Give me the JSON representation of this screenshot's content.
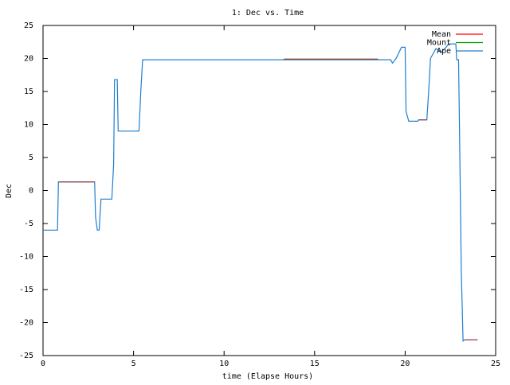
{
  "chart_data": {
    "type": "line",
    "title": "1: Dec vs. Time",
    "x_label": "time (Elapse Hours)",
    "y_label": "Dec",
    "xlim": [
      0,
      25
    ],
    "xticks": [
      0,
      5,
      10,
      15,
      20,
      25
    ],
    "ylim": [
      -25,
      25
    ],
    "yticks": [
      -25,
      -20,
      -15,
      -10,
      -5,
      0,
      5,
      10,
      15,
      20,
      25
    ],
    "legend": "top-right",
    "series": [
      {
        "name": "Mean",
        "color": "#ff0000",
        "x": [
          0.85,
          2.85,
          null,
          13.3,
          18.5,
          null,
          20.75,
          21.2,
          null,
          23.3,
          24.0
        ],
        "values": [
          1.3,
          1.3,
          null,
          19.9,
          19.9,
          null,
          10.7,
          10.7,
          null,
          -22.6,
          -22.6
        ]
      },
      {
        "name": "Mount",
        "color": "#00a000",
        "x": [
          0.85,
          2.85,
          null,
          13.3,
          18.5,
          null,
          20.75,
          21.2,
          null,
          23.3,
          24.0
        ],
        "values": [
          1.3,
          1.3,
          null,
          19.9,
          19.9,
          null,
          10.7,
          10.7,
          null,
          -22.6,
          -22.6
        ]
      },
      {
        "name": "Ape",
        "color": "#1e7fd0",
        "x": [
          0,
          0.8,
          0.85,
          2.85,
          2.9,
          3.0,
          3.1,
          3.2,
          3.8,
          3.9,
          3.95,
          4.1,
          4.15,
          5.3,
          5.4,
          5.5,
          19.2,
          19.3,
          19.5,
          19.8,
          20.0,
          20.05,
          20.2,
          20.7,
          20.75,
          21.2,
          21.3,
          21.4,
          21.7,
          22.0,
          22.2,
          22.4,
          22.8,
          22.85,
          22.95,
          23.0,
          23.1,
          23.2,
          23.3,
          24.0
        ],
        "values": [
          -6,
          -6,
          1.3,
          1.3,
          -4,
          -6,
          -6,
          -1.3,
          -1.3,
          4,
          16.8,
          16.8,
          9,
          9,
          15,
          19.8,
          19.8,
          19.3,
          20,
          21.7,
          21.7,
          12,
          10.5,
          10.5,
          10.7,
          10.7,
          15,
          20,
          21.5,
          21,
          21.5,
          22.2,
          22.2,
          19.8,
          19.8,
          10,
          -12,
          -22.8,
          -22.6,
          -22.6
        ]
      }
    ]
  }
}
